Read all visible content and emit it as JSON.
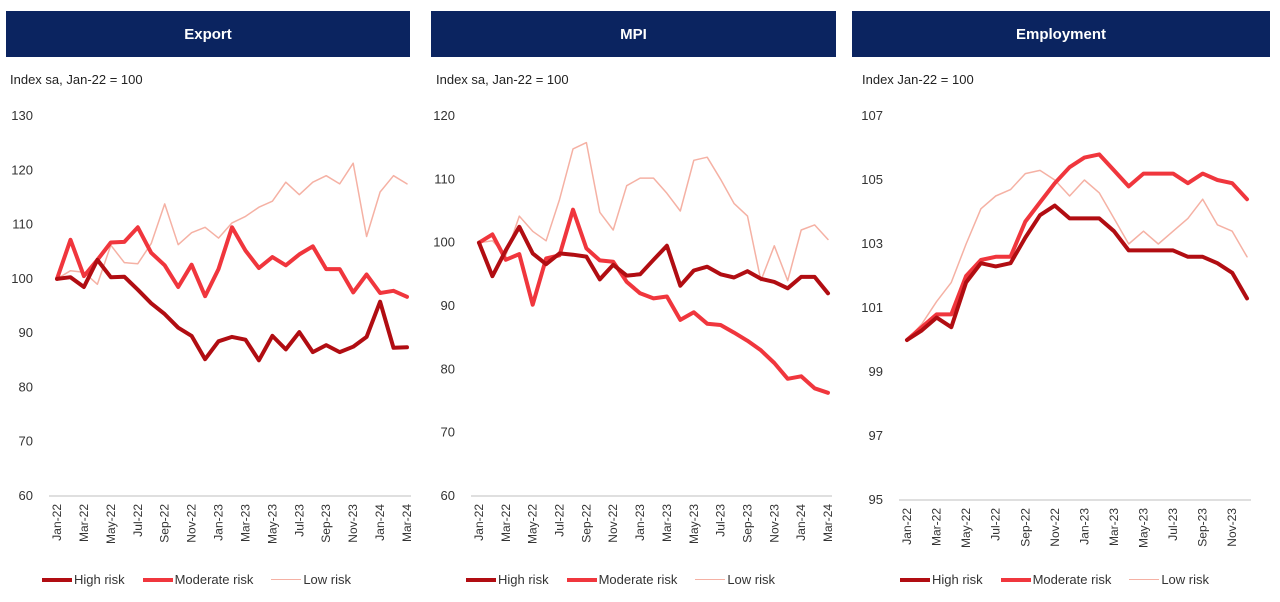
{
  "colors": {
    "header_bg": "#0b2460",
    "high": "#b10d12",
    "moderate": "#f0363d",
    "low": "#f5b1a4"
  },
  "legend": {
    "high": "High risk",
    "moderate": "Moderate risk",
    "low": "Low risk"
  },
  "chart_data": [
    {
      "type": "line",
      "title": "Export",
      "ylabel": "Index sa, Jan-22 = 100",
      "ylim": [
        60,
        130
      ],
      "yticks": [
        60,
        70,
        80,
        90,
        100,
        110,
        120,
        130
      ],
      "categories": [
        "Jan-22",
        "Feb-22",
        "Mar-22",
        "Apr-22",
        "May-22",
        "Jun-22",
        "Jul-22",
        "Aug-22",
        "Sep-22",
        "Oct-22",
        "Nov-22",
        "Dec-22",
        "Jan-23",
        "Feb-23",
        "Mar-23",
        "Apr-23",
        "May-23",
        "Jun-23",
        "Jul-23",
        "Aug-23",
        "Sep-23",
        "Oct-23",
        "Nov-23",
        "Dec-23",
        "Jan-24",
        "Feb-24",
        "Mar-24"
      ],
      "tick_labels": [
        "Jan-22",
        "Mar-22",
        "May-22",
        "Jul-22",
        "Sep-22",
        "Nov-22",
        "Jan-23",
        "Mar-23",
        "May-23",
        "Jul-23",
        "Sep-23",
        "Nov-23",
        "Jan-24",
        "Mar-24"
      ],
      "series": [
        {
          "name": "High risk",
          "values": [
            100,
            100.3,
            98.5,
            103.5,
            100.3,
            100.4,
            98.0,
            95.5,
            93.5,
            91.0,
            89.5,
            85.2,
            88.5,
            89.3,
            88.8,
            85.0,
            89.5,
            87.0,
            90.2,
            86.5,
            87.8,
            86.5,
            87.5,
            89.3,
            95.8,
            87.3,
            87.4
          ]
        },
        {
          "name": "Moderate risk",
          "values": [
            100,
            107.2,
            100.5,
            103.5,
            106.7,
            106.8,
            109.5,
            104.8,
            102.5,
            98.5,
            102.6,
            96.8,
            101.8,
            109.5,
            105.2,
            102.0,
            104.0,
            102.5,
            104.5,
            106.0,
            101.8,
            101.8,
            97.5,
            100.8,
            97.4,
            97.8,
            96.7
          ]
        },
        {
          "name": "Low risk",
          "values": [
            100,
            101.5,
            101.2,
            99.0,
            106.2,
            103.0,
            102.8,
            106.5,
            113.8,
            106.3,
            108.5,
            109.5,
            107.5,
            110.3,
            111.5,
            113.2,
            114.3,
            117.8,
            115.5,
            117.8,
            119.0,
            117.5,
            121.3,
            107.8,
            116.0,
            119.0,
            117.5
          ]
        }
      ]
    },
    {
      "type": "line",
      "title": "MPI",
      "ylabel": "Index sa, Jan-22 = 100",
      "ylim": [
        60,
        120
      ],
      "yticks": [
        60,
        70,
        80,
        90,
        100,
        110,
        120
      ],
      "categories": [
        "Jan-22",
        "Feb-22",
        "Mar-22",
        "Apr-22",
        "May-22",
        "Jun-22",
        "Jul-22",
        "Aug-22",
        "Sep-22",
        "Oct-22",
        "Nov-22",
        "Dec-22",
        "Jan-23",
        "Feb-23",
        "Mar-23",
        "Apr-23",
        "May-23",
        "Jun-23",
        "Jul-23",
        "Aug-23",
        "Sep-23",
        "Oct-23",
        "Nov-23",
        "Dec-23",
        "Jan-24",
        "Feb-24",
        "Mar-24"
      ],
      "tick_labels": [
        "Jan-22",
        "Mar-22",
        "May-22",
        "Jul-22",
        "Sep-22",
        "Nov-22",
        "Jan-23",
        "Mar-23",
        "May-23",
        "Jul-23",
        "Sep-23",
        "Nov-23",
        "Jan-24",
        "Mar-24"
      ],
      "series": [
        {
          "name": "High risk",
          "values": [
            100,
            94.7,
            98.8,
            102.5,
            98.3,
            96.6,
            98.3,
            98.1,
            97.8,
            94.2,
            96.5,
            94.8,
            95.0,
            97.3,
            99.5,
            93.2,
            95.6,
            96.2,
            95.0,
            94.5,
            95.5,
            94.3,
            93.8,
            92.8,
            94.6,
            94.6,
            92.0
          ]
        },
        {
          "name": "Moderate risk",
          "values": [
            100,
            101.3,
            97.3,
            98.2,
            90.2,
            97.5,
            98.0,
            105.2,
            99.1,
            97.2,
            97.0,
            93.8,
            92.0,
            91.2,
            91.5,
            87.8,
            89.0,
            87.2,
            87.0,
            85.8,
            84.5,
            83.0,
            81.0,
            78.5,
            78.9,
            77.0,
            76.3
          ]
        },
        {
          "name": "Low risk",
          "values": [
            100,
            100.3,
            98.0,
            104.2,
            101.8,
            100.3,
            106.8,
            114.8,
            115.8,
            104.8,
            102.0,
            109.0,
            110.2,
            110.2,
            107.8,
            105.0,
            113.0,
            113.5,
            110.0,
            106.2,
            104.2,
            94.0,
            99.5,
            94.0,
            102.0,
            102.8,
            100.5
          ]
        }
      ]
    },
    {
      "type": "line",
      "title": "Employment",
      "ylabel": "Index Jan-22 = 100",
      "ylim": [
        95,
        107
      ],
      "yticks": [
        95,
        97,
        99,
        101,
        103,
        105,
        107
      ],
      "categories": [
        "Jan-22",
        "Feb-22",
        "Mar-22",
        "Apr-22",
        "May-22",
        "Jun-22",
        "Jul-22",
        "Aug-22",
        "Sep-22",
        "Oct-22",
        "Nov-22",
        "Dec-22",
        "Jan-23",
        "Feb-23",
        "Mar-23",
        "Apr-23",
        "May-23",
        "Jun-23",
        "Jul-23",
        "Aug-23",
        "Sep-23",
        "Oct-23",
        "Nov-23",
        "Dec-23"
      ],
      "tick_labels": [
        "Jan-22",
        "Mar-22",
        "May-22",
        "Jul-22",
        "Sep-22",
        "Nov-22",
        "Jan-23",
        "Mar-23",
        "May-23",
        "Jul-23",
        "Sep-23",
        "Nov-23"
      ],
      "series": [
        {
          "name": "High risk",
          "values": [
            100,
            100.3,
            100.7,
            100.4,
            101.8,
            102.4,
            102.3,
            102.4,
            103.2,
            103.9,
            104.2,
            103.8,
            103.8,
            103.8,
            103.4,
            102.8,
            102.8,
            102.8,
            102.8,
            102.6,
            102.6,
            102.4,
            102.1,
            101.3
          ]
        },
        {
          "name": "Moderate risk",
          "values": [
            100,
            100.4,
            100.8,
            100.8,
            102.0,
            102.5,
            102.6,
            102.6,
            103.7,
            104.3,
            104.9,
            105.4,
            105.7,
            105.8,
            105.3,
            104.8,
            105.2,
            105.2,
            105.2,
            104.9,
            105.2,
            105.0,
            104.9,
            104.4
          ]
        },
        {
          "name": "Low risk",
          "values": [
            100,
            100.5,
            101.2,
            101.8,
            103.0,
            104.1,
            104.5,
            104.7,
            105.2,
            105.3,
            105.0,
            104.5,
            105.0,
            104.6,
            103.8,
            103.0,
            103.4,
            103.0,
            103.4,
            103.8,
            104.4,
            103.6,
            103.4,
            102.6
          ]
        }
      ]
    }
  ]
}
